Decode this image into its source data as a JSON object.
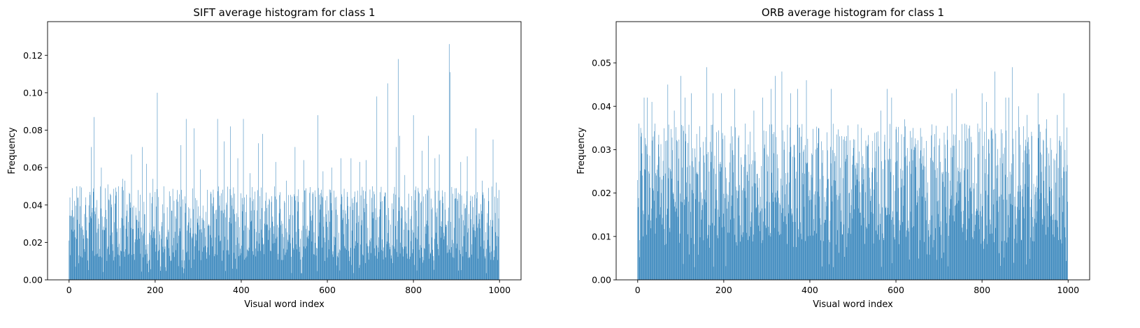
{
  "chart_data": [
    {
      "type": "bar",
      "title": "SIFT average histogram for class 1",
      "xlabel": "Visual word index",
      "ylabel": "Frequency",
      "xlim": [
        -50,
        1050
      ],
      "ylim": [
        0,
        0.138
      ],
      "xticks": [
        0,
        200,
        400,
        600,
        800,
        1000
      ],
      "xtick_labels": [
        "0",
        "200",
        "400",
        "600",
        "800",
        "1000"
      ],
      "yticks": [
        0,
        0.02,
        0.04,
        0.06,
        0.08,
        0.1,
        0.12
      ],
      "ytick_labels": [
        "0.00",
        "0.02",
        "0.04",
        "0.06",
        "0.08",
        "0.10",
        "0.12"
      ],
      "bar_color": "#1f77b4",
      "n_bars": 1000,
      "base_level": 0.03,
      "spread": 0.02,
      "noise_seed": 11,
      "peaks": [
        [
          0,
          0.021
        ],
        [
          5,
          0.034
        ],
        [
          8,
          0.049
        ],
        [
          18,
          0.05
        ],
        [
          25,
          0.05
        ],
        [
          38,
          0.04
        ],
        [
          48,
          0.047
        ],
        [
          52,
          0.071
        ],
        [
          58,
          0.087
        ],
        [
          75,
          0.06
        ],
        [
          90,
          0.051
        ],
        [
          95,
          0.046
        ],
        [
          115,
          0.05
        ],
        [
          125,
          0.054
        ],
        [
          130,
          0.053
        ],
        [
          145,
          0.067
        ],
        [
          160,
          0.048
        ],
        [
          170,
          0.071
        ],
        [
          180,
          0.062
        ],
        [
          195,
          0.054
        ],
        [
          200,
          0.047
        ],
        [
          205,
          0.1
        ],
        [
          220,
          0.05
        ],
        [
          250,
          0.043
        ],
        [
          260,
          0.072
        ],
        [
          272,
          0.086
        ],
        [
          290,
          0.081
        ],
        [
          305,
          0.059
        ],
        [
          330,
          0.046
        ],
        [
          345,
          0.086
        ],
        [
          360,
          0.074
        ],
        [
          375,
          0.082
        ],
        [
          392,
          0.065
        ],
        [
          405,
          0.086
        ],
        [
          420,
          0.057
        ],
        [
          440,
          0.073
        ],
        [
          450,
          0.078
        ],
        [
          480,
          0.063
        ],
        [
          505,
          0.053
        ],
        [
          525,
          0.071
        ],
        [
          545,
          0.064
        ],
        [
          578,
          0.088
        ],
        [
          590,
          0.058
        ],
        [
          610,
          0.06
        ],
        [
          632,
          0.065
        ],
        [
          655,
          0.065
        ],
        [
          675,
          0.063
        ],
        [
          690,
          0.064
        ],
        [
          705,
          0.05
        ],
        [
          715,
          0.098
        ],
        [
          740,
          0.105
        ],
        [
          760,
          0.071
        ],
        [
          765,
          0.118
        ],
        [
          768,
          0.077
        ],
        [
          780,
          0.056
        ],
        [
          800,
          0.088
        ],
        [
          820,
          0.069
        ],
        [
          835,
          0.077
        ],
        [
          850,
          0.065
        ],
        [
          860,
          0.067
        ],
        [
          883,
          0.126
        ],
        [
          885,
          0.111
        ],
        [
          900,
          0.049
        ],
        [
          910,
          0.063
        ],
        [
          925,
          0.066
        ],
        [
          945,
          0.081
        ],
        [
          960,
          0.053
        ],
        [
          985,
          0.075
        ],
        [
          992,
          0.052
        ],
        [
          999,
          0.048
        ]
      ]
    },
    {
      "type": "bar",
      "title": "ORB average histogram for class 1",
      "xlabel": "Visual word index",
      "ylabel": "Frequency",
      "xlim": [
        -50,
        1050
      ],
      "ylim": [
        0,
        0.0595
      ],
      "xticks": [
        0,
        200,
        400,
        600,
        800,
        1000
      ],
      "xtick_labels": [
        "0",
        "200",
        "400",
        "600",
        "800",
        "1000"
      ],
      "yticks": [
        0,
        0.01,
        0.02,
        0.03,
        0.04,
        0.05
      ],
      "ytick_labels": [
        "0.00",
        "0.01",
        "0.02",
        "0.03",
        "0.04",
        "0.05"
      ],
      "bar_color": "#1f77b4",
      "n_bars": 1000,
      "base_level": 0.022,
      "spread": 0.014,
      "noise_seed": 29,
      "peaks": [
        [
          0,
          0.023
        ],
        [
          3,
          0.036
        ],
        [
          8,
          0.033
        ],
        [
          15,
          0.042
        ],
        [
          22,
          0.042
        ],
        [
          33,
          0.041
        ],
        [
          40,
          0.036
        ],
        [
          70,
          0.045
        ],
        [
          85,
          0.039
        ],
        [
          100,
          0.047
        ],
        [
          110,
          0.042
        ],
        [
          125,
          0.043
        ],
        [
          160,
          0.049
        ],
        [
          175,
          0.043
        ],
        [
          195,
          0.043
        ],
        [
          225,
          0.044
        ],
        [
          250,
          0.036
        ],
        [
          270,
          0.039
        ],
        [
          290,
          0.042
        ],
        [
          310,
          0.044
        ],
        [
          320,
          0.047
        ],
        [
          335,
          0.048
        ],
        [
          355,
          0.043
        ],
        [
          372,
          0.044
        ],
        [
          392,
          0.046
        ],
        [
          420,
          0.035
        ],
        [
          440,
          0.034
        ],
        [
          450,
          0.044
        ],
        [
          480,
          0.033
        ],
        [
          520,
          0.035
        ],
        [
          545,
          0.032
        ],
        [
          565,
          0.039
        ],
        [
          580,
          0.044
        ],
        [
          590,
          0.042
        ],
        [
          620,
          0.037
        ],
        [
          640,
          0.035
        ],
        [
          660,
          0.033
        ],
        [
          700,
          0.031
        ],
        [
          730,
          0.043
        ],
        [
          740,
          0.044
        ],
        [
          760,
          0.036
        ],
        [
          790,
          0.036
        ],
        [
          800,
          0.043
        ],
        [
          810,
          0.041
        ],
        [
          830,
          0.048
        ],
        [
          855,
          0.042
        ],
        [
          862,
          0.042
        ],
        [
          870,
          0.049
        ],
        [
          885,
          0.04
        ],
        [
          905,
          0.038
        ],
        [
          930,
          0.043
        ],
        [
          950,
          0.037
        ],
        [
          975,
          0.038
        ],
        [
          990,
          0.043
        ],
        [
          995,
          0.025
        ],
        [
          999,
          0.018
        ]
      ]
    }
  ]
}
